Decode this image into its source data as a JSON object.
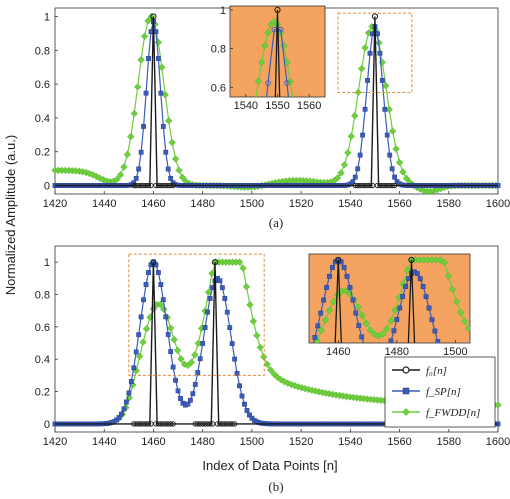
{
  "figure": {
    "ylabel": "Normalized Amplitude (a.u.)",
    "xlabel": "Index of Data Points [n]",
    "colors": {
      "f0": "#1a1a1a",
      "fsp": "#3b5cb8",
      "ffwdd": "#6fce3c",
      "inset_bg": "#f4a460",
      "box": "#e08a3a"
    }
  },
  "legend": [
    {
      "key": "f0",
      "label": "f₀[n]"
    },
    {
      "key": "fsp",
      "label": "f_SP[n]"
    },
    {
      "key": "ffwdd",
      "label": "f_FWDD[n]"
    }
  ],
  "chart_data": [
    {
      "type": "line",
      "panel_label": "(a)",
      "xlim": [
        1420,
        1600
      ],
      "ylim": [
        -0.05,
        1.05
      ],
      "xticks": [
        1420,
        1440,
        1460,
        1480,
        1500,
        1520,
        1540,
        1560,
        1580,
        1600
      ],
      "yticks": [
        0,
        0.2,
        0.4,
        0.6,
        0.8,
        1
      ],
      "peaks": {
        "f0": [
          [
            1460,
            1.0
          ],
          [
            1550,
            1.0
          ]
        ],
        "fsp": [
          [
            1460,
            0.97
          ],
          [
            1550,
            0.94
          ]
        ],
        "ffwdd": [
          [
            1459,
            1.0
          ],
          [
            1549,
            0.94
          ]
        ]
      },
      "inset": {
        "xlim": [
          1535,
          1565
        ],
        "ylim": [
          0.55,
          1.02
        ],
        "xticks": [
          1540,
          1550,
          1560
        ],
        "yticks": [
          0.6,
          0.8,
          1
        ]
      }
    },
    {
      "type": "line",
      "panel_label": "(b)",
      "xlim": [
        1420,
        1600
      ],
      "ylim": [
        -0.05,
        1.1
      ],
      "xticks": [
        1420,
        1440,
        1460,
        1480,
        1500,
        1520,
        1540,
        1560,
        1580,
        1600
      ],
      "yticks": [
        0,
        0.2,
        0.4,
        0.6,
        0.8,
        1
      ],
      "peaks": {
        "f0": [
          [
            1460,
            1.0
          ],
          [
            1485,
            1.0
          ]
        ],
        "fsp": [
          [
            1460,
            1.0
          ],
          [
            1486,
            0.9
          ]
        ],
        "ffwdd": [
          [
            1462,
            0.7
          ],
          [
            1489,
            1.0
          ]
        ]
      },
      "inset": {
        "xlim": [
          1450,
          1505
        ],
        "ylim": [
          0.3,
          1.05
        ],
        "xticks": [
          1460,
          1480,
          1500
        ],
        "yticks": []
      }
    }
  ]
}
